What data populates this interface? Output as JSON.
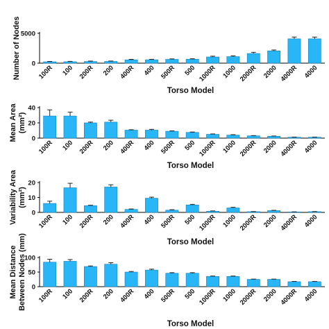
{
  "chart_data": [
    {
      "type": "bar",
      "categories": [
        "100R",
        "100",
        "200R",
        "200",
        "400R",
        "400",
        "500R",
        "500",
        "1000R",
        "1000",
        "2000R",
        "2000",
        "4000R",
        "4000"
      ],
      "values": [
        230,
        240,
        280,
        290,
        560,
        570,
        640,
        660,
        1040,
        1100,
        1620,
        2060,
        4080,
        4080
      ],
      "errors": [
        60,
        60,
        70,
        70,
        80,
        80,
        80,
        80,
        130,
        120,
        200,
        150,
        300,
        290
      ],
      "title": "",
      "xlabel": "Torso Model",
      "ylabel": [
        "Number of Nodes"
      ],
      "ylim": [
        0,
        5000
      ],
      "yticks": [
        0,
        5000
      ],
      "yticklabels": [
        "0",
        "5000"
      ],
      "bar_color": "#29b6f6",
      "grid": false
    },
    {
      "type": "bar",
      "categories": [
        "100R",
        "100",
        "200R",
        "200",
        "400R",
        "400",
        "500R",
        "500",
        "1000R",
        "1000",
        "2000R",
        "2000",
        "4000R",
        "4000"
      ],
      "values": [
        29,
        29,
        20,
        21,
        10.5,
        10.5,
        9,
        7.5,
        5,
        4,
        3,
        2.5,
        1.2,
        1.2
      ],
      "errors": [
        8,
        5,
        1,
        2.5,
        0.5,
        1,
        0.5,
        0.5,
        0.5,
        0.5,
        0.3,
        0.3,
        0.2,
        0.2
      ],
      "title": "",
      "xlabel": "Torso Model",
      "ylabel": [
        "Mean Area",
        "(mm²)"
      ],
      "ylim": [
        0,
        40
      ],
      "yticks": [
        0,
        20,
        40
      ],
      "yticklabels": [
        "0",
        "20",
        "40"
      ],
      "bar_color": "#29b6f6",
      "grid": false
    },
    {
      "type": "bar",
      "categories": [
        "100R",
        "100",
        "200R",
        "200",
        "400R",
        "400",
        "500R",
        "500",
        "1000R",
        "1000",
        "2000R",
        "2000",
        "4000R",
        "4000"
      ],
      "values": [
        6,
        16.5,
        4.5,
        17,
        2,
        9.5,
        1.5,
        5,
        0.8,
        3,
        0.5,
        1.2,
        0.3,
        0.5
      ],
      "errors": [
        1.5,
        3,
        0.3,
        1.5,
        0.3,
        0.7,
        0.3,
        0.4,
        0.2,
        0.4,
        0.1,
        0.2,
        0.1,
        0.1
      ],
      "title": "",
      "xlabel": "Torso Model",
      "ylabel": [
        "Variability Area",
        "(mm²)"
      ],
      "ylim": [
        0,
        20
      ],
      "yticks": [
        0,
        10,
        20
      ],
      "yticklabels": [
        "0",
        "10",
        "20"
      ],
      "bar_color": "#29b6f6",
      "grid": false
    },
    {
      "type": "bar",
      "categories": [
        "100R",
        "100",
        "200R",
        "200",
        "400R",
        "400",
        "500R",
        "500",
        "1000R",
        "1000",
        "2000R",
        "2000",
        "4000R",
        "4000"
      ],
      "values": [
        84,
        87,
        69,
        77,
        50,
        57,
        46,
        46,
        35,
        35,
        25,
        25,
        17,
        17
      ],
      "errors": [
        10,
        6,
        2,
        5,
        2,
        3,
        2,
        2,
        1.5,
        1.5,
        1,
        1,
        1,
        1
      ],
      "title": "",
      "xlabel": "Torso Model",
      "ylabel": [
        "Mean Distance",
        "Between Nodes (mm)"
      ],
      "ylim": [
        0,
        100
      ],
      "yticks": [
        0,
        50,
        100
      ],
      "yticklabels": [
        "0",
        "50",
        "100"
      ],
      "bar_color": "#29b6f6",
      "grid": false
    }
  ]
}
